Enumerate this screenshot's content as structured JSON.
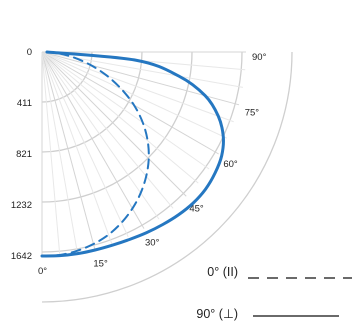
{
  "chart_data": {
    "type": "polar-line",
    "radial_ticks": [
      "0",
      "411",
      "821",
      "1232",
      "1642"
    ],
    "radial_range": [
      0,
      1642
    ],
    "angle_ticks": [
      "0°",
      "15°",
      "30°",
      "45°",
      "60°",
      "75°",
      "90°"
    ],
    "angle_range_deg": [
      0,
      90
    ],
    "legend_position": "bottom-right",
    "series": [
      {
        "name": "0° (II)",
        "style": "dashed",
        "color": "#2577c1",
        "angle_deg": [
          0,
          5,
          10,
          15,
          20,
          25,
          30,
          35,
          40,
          45,
          50,
          55,
          60,
          65,
          70,
          75,
          80,
          85,
          90
        ],
        "values": [
          1642,
          1640,
          1625,
          1600,
          1565,
          1515,
          1455,
          1385,
          1305,
          1215,
          1110,
          990,
          855,
          705,
          555,
          405,
          265,
          140,
          40
        ]
      },
      {
        "name": "90° (⊥)",
        "style": "solid",
        "color": "#2577c1",
        "angle_deg": [
          0,
          5,
          10,
          15,
          20,
          25,
          30,
          35,
          40,
          45,
          50,
          55,
          60,
          65,
          70,
          75,
          80,
          85,
          90
        ],
        "values": [
          1642,
          1645,
          1648,
          1650,
          1655,
          1665,
          1680,
          1695,
          1710,
          1720,
          1718,
          1700,
          1670,
          1610,
          1510,
          1360,
          1120,
          760,
          40
        ]
      }
    ]
  }
}
